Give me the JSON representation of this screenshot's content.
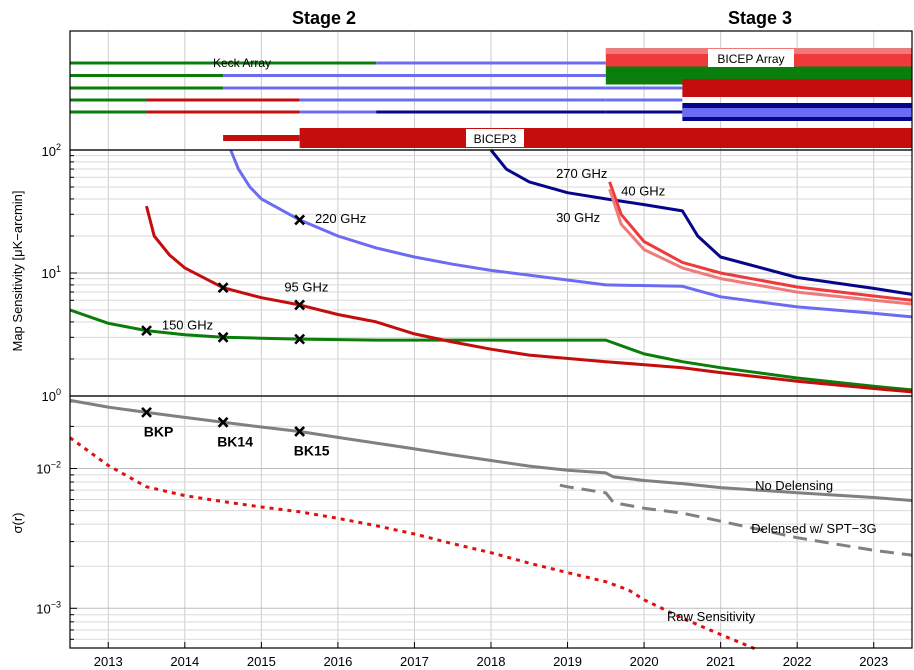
{
  "header": {
    "stage2": "Stage 2",
    "stage3": "Stage 3"
  },
  "colors": {
    "green": "#0a7d0a",
    "red": "#c40d0d",
    "light_blue": "#6c6cf2",
    "dark_blue": "#06068a",
    "orange_red": "#ee3a3a",
    "pink": "#f07a7a",
    "grey": "#808080",
    "raw_red": "#e01010",
    "grid": "#cccccc"
  },
  "chart_data": [
    {
      "type": "timeline",
      "panel": "receivers",
      "labels": {
        "keck": "Keck Array",
        "bicep_array": "BICEP Array",
        "bicep3": "BICEP3",
        "ytick_bottom": "10",
        "ytick_bottom_exp": "2"
      },
      "bars": [
        {
          "row": 1,
          "x0": 2012.5,
          "x1": 2016.5,
          "color": "green",
          "weight": "thin"
        },
        {
          "row": 1,
          "x0": 2016.5,
          "x1": 2019.5,
          "color": "light_blue",
          "weight": "thin"
        },
        {
          "row": 2,
          "x0": 2012.5,
          "x1": 2014.5,
          "color": "green",
          "weight": "thin"
        },
        {
          "row": 2,
          "x0": 2014.5,
          "x1": 2019.5,
          "color": "light_blue",
          "weight": "thin"
        },
        {
          "row": 3,
          "x0": 2012.5,
          "x1": 2014.5,
          "color": "green",
          "weight": "thin"
        },
        {
          "row": 3,
          "x0": 2014.5,
          "x1": 2019.5,
          "color": "light_blue",
          "weight": "thin"
        },
        {
          "row": 4,
          "x0": 2012.5,
          "x1": 2013.5,
          "color": "green",
          "weight": "thin"
        },
        {
          "row": 4,
          "x0": 2013.5,
          "x1": 2015.5,
          "color": "red",
          "weight": "thin"
        },
        {
          "row": 4,
          "x0": 2015.5,
          "x1": 2019.5,
          "color": "light_blue",
          "weight": "thin"
        },
        {
          "row": 5,
          "x0": 2012.5,
          "x1": 2013.5,
          "color": "green",
          "weight": "thin"
        },
        {
          "row": 5,
          "x0": 2013.5,
          "x1": 2015.5,
          "color": "red",
          "weight": "thin"
        },
        {
          "row": 5,
          "x0": 2015.5,
          "x1": 2016.5,
          "color": "light_blue",
          "weight": "thin"
        },
        {
          "row": 5,
          "x0": 2016.5,
          "x1": 2019.5,
          "color": "dark_blue",
          "weight": "thin"
        },
        {
          "row": 6,
          "x0": 2014.5,
          "x1": 2015.5,
          "color": "red",
          "weight": "medium"
        },
        {
          "row": 6,
          "x0": 2015.5,
          "x1": 2023.5,
          "color": "red",
          "weight": "thick"
        },
        {
          "row": 1,
          "x0": 2019.5,
          "x1": 2023.5,
          "color": "orange_red",
          "weight": "thick"
        },
        {
          "row": 2,
          "x0": 2019.5,
          "x1": 2023.5,
          "color": "green",
          "weight": "thick"
        },
        {
          "row": 3,
          "x0": 2019.5,
          "x1": 2020.5,
          "color": "light_blue",
          "weight": "thin"
        },
        {
          "row": 3,
          "x0": 2020.5,
          "x1": 2023.5,
          "color": "red",
          "weight": "thick"
        },
        {
          "row": 4,
          "x0": 2019.5,
          "x1": 2020.5,
          "color": "light_blue",
          "weight": "thin"
        },
        {
          "row": 5,
          "x0": 2019.5,
          "x1": 2020.5,
          "color": "dark_blue",
          "weight": "thin"
        },
        {
          "row": 5,
          "x0": 2020.5,
          "x1": 2023.5,
          "color": "dark_blue",
          "weight": "thick"
        }
      ]
    },
    {
      "type": "line",
      "panel": "map_sensitivity",
      "ylabel": "Map Sensitivity [μK−arcmin]",
      "yscale": "log",
      "ylim": [
        1,
        100
      ],
      "yticks": [
        {
          "base": "10",
          "exp": "0"
        },
        {
          "base": "10",
          "exp": "1"
        }
      ],
      "series": [
        {
          "name": "150 GHz",
          "color": "green",
          "x": [
            2012.5,
            2013.0,
            2013.5,
            2014.0,
            2014.5,
            2015.0,
            2015.5,
            2016.5,
            2017.5,
            2018.5,
            2019.5,
            2020.0,
            2020.5,
            2021.0,
            2022.0,
            2023.0,
            2023.5
          ],
          "y": [
            5.0,
            3.9,
            3.4,
            3.15,
            3.0,
            2.95,
            2.9,
            2.85,
            2.85,
            2.85,
            2.85,
            2.2,
            1.9,
            1.7,
            1.4,
            1.2,
            1.12
          ]
        },
        {
          "name": "95 GHz",
          "color": "red",
          "x": [
            2013.5,
            2013.6,
            2013.8,
            2014.0,
            2014.5,
            2015.0,
            2015.5,
            2016.0,
            2016.5,
            2017.0,
            2017.5,
            2018.0,
            2018.5,
            2019.5,
            2020.5,
            2021.0,
            2022.0,
            2023.0,
            2023.5
          ],
          "y": [
            35,
            20,
            14,
            11,
            7.6,
            6.3,
            5.5,
            4.6,
            4.0,
            3.2,
            2.75,
            2.4,
            2.15,
            1.9,
            1.7,
            1.55,
            1.32,
            1.15,
            1.08
          ]
        },
        {
          "name": "220 GHz",
          "color": "light_blue",
          "x": [
            2014.6,
            2014.7,
            2014.85,
            2015.0,
            2015.5,
            2016.0,
            2016.5,
            2017.0,
            2017.5,
            2018.0,
            2019.5,
            2020.5,
            2021.0,
            2022.0,
            2023.0,
            2023.5
          ],
          "y": [
            100,
            70,
            50,
            40,
            27,
            20,
            16,
            13.5,
            11.8,
            10.5,
            8.0,
            7.8,
            6.4,
            5.3,
            4.7,
            4.4
          ]
        },
        {
          "name": "270 GHz",
          "color": "dark_blue",
          "x": [
            2018.0,
            2018.2,
            2018.5,
            2019.0,
            2019.5,
            2020.0,
            2020.5,
            2020.7,
            2021.0,
            2022.0,
            2023.0,
            2023.5
          ],
          "y": [
            100,
            70,
            55,
            45,
            40,
            36,
            32,
            20,
            13.5,
            9.2,
            7.5,
            6.7
          ]
        },
        {
          "name": "40 GHz",
          "color": "orange_red",
          "x": [
            2019.55,
            2019.7,
            2020.0,
            2020.5,
            2021.0,
            2022.0,
            2023.0,
            2023.5
          ],
          "y": [
            55,
            30,
            18,
            12.2,
            10.0,
            7.7,
            6.5,
            6.0
          ]
        },
        {
          "name": "30 GHz",
          "color": "pink",
          "x": [
            2019.55,
            2019.7,
            2020.0,
            2020.5,
            2021.0,
            2022.0,
            2023.0,
            2023.5
          ],
          "y": [
            48,
            25,
            15.5,
            11.0,
            9.0,
            7.0,
            6.0,
            5.6
          ]
        }
      ],
      "markers": [
        {
          "x": 2013.5,
          "y": 3.4
        },
        {
          "x": 2014.5,
          "y": 3.0
        },
        {
          "x": 2015.5,
          "y": 2.9
        },
        {
          "x": 2014.5,
          "y": 7.6
        },
        {
          "x": 2015.5,
          "y": 5.5
        },
        {
          "x": 2015.5,
          "y": 27
        }
      ],
      "annotations": [
        {
          "text": "150 GHz",
          "x": 2013.7,
          "y": 3.8
        },
        {
          "text": "95 GHz",
          "x": 2015.3,
          "y": 7.8
        },
        {
          "text": "220 GHz",
          "x": 2015.7,
          "y": 28
        },
        {
          "text": "270 GHz",
          "x": 2018.85,
          "y": 65
        },
        {
          "text": "40 GHz",
          "x": 2019.7,
          "y": 47
        },
        {
          "text": "30 GHz",
          "x": 2018.85,
          "y": 28.5
        }
      ]
    },
    {
      "type": "line",
      "panel": "sigma_r",
      "ylabel": "σ(r)",
      "yscale": "log",
      "ylim": [
        0.00052,
        0.033
      ],
      "yticks": [
        {
          "base": "10",
          "exp": "−2",
          "value": 0.01
        },
        {
          "base": "10",
          "exp": "−3",
          "value": 0.001
        }
      ],
      "series": [
        {
          "name": "No Delensing",
          "color": "grey",
          "dash": "solid",
          "x": [
            2012.5,
            2013.0,
            2013.5,
            2014.0,
            2014.5,
            2015.0,
            2015.5,
            2016.0,
            2016.5,
            2017.0,
            2017.5,
            2018.0,
            2018.5,
            2019.0,
            2019.5,
            2019.6,
            2020.0,
            2020.5,
            2021.0,
            2022.0,
            2023.0,
            2023.5
          ],
          "y": [
            0.0307,
            0.0275,
            0.0252,
            0.0232,
            0.0214,
            0.0198,
            0.0184,
            0.0167,
            0.0152,
            0.0138,
            0.0125,
            0.0114,
            0.0104,
            0.0097,
            0.0093,
            0.0087,
            0.0082,
            0.0078,
            0.0073,
            0.0067,
            0.0062,
            0.0059
          ]
        },
        {
          "name": "Delensed w/ SPT−3G",
          "color": "grey",
          "dash": "dashed",
          "x": [
            2018.9,
            2019.0,
            2019.5,
            2019.6,
            2020.0,
            2020.5,
            2021.0,
            2022.0,
            2023.0,
            2023.5
          ],
          "y": [
            0.0076,
            0.0074,
            0.0067,
            0.0057,
            0.0052,
            0.0048,
            0.0042,
            0.0032,
            0.0026,
            0.0024
          ]
        },
        {
          "name": "Raw Sensitivity",
          "color": "raw_red",
          "dash": "dotted",
          "x": [
            2012.5,
            2013.0,
            2013.5,
            2014.0,
            2014.5,
            2015.0,
            2015.5,
            2016.0,
            2016.5,
            2017.0,
            2017.5,
            2018.0,
            2018.5,
            2019.0,
            2019.5,
            2019.8,
            2020.0,
            2020.5,
            2021.0,
            2021.5
          ],
          "y": [
            0.0166,
            0.0105,
            0.0074,
            0.0064,
            0.0058,
            0.0053,
            0.0049,
            0.0044,
            0.0039,
            0.0034,
            0.0029,
            0.0025,
            0.0021,
            0.0018,
            0.00155,
            0.00135,
            0.00115,
            0.00085,
            0.00065,
            0.0005
          ]
        }
      ],
      "markers": [
        {
          "label": "BKP",
          "x": 2013.5,
          "y": 0.0252
        },
        {
          "label": "BK14",
          "x": 2014.5,
          "y": 0.0214
        },
        {
          "label": "BK15",
          "x": 2015.5,
          "y": 0.0184
        }
      ],
      "curve_labels": [
        {
          "text": "No Delensing",
          "x": 2021.45,
          "y": 0.0076
        },
        {
          "text": "Delensed w/ SPT−3G",
          "x": 2021.4,
          "y": 0.00375
        },
        {
          "text": "Raw Sensitivity",
          "x": 2020.3,
          "y": 0.00088
        }
      ],
      "xlabel": "",
      "xticks": [
        "2013",
        "2014",
        "2015",
        "2016",
        "2017",
        "2018",
        "2019",
        "2020",
        "2021",
        "2022",
        "2023"
      ],
      "xlim": [
        2012.5,
        2023.5
      ]
    }
  ]
}
